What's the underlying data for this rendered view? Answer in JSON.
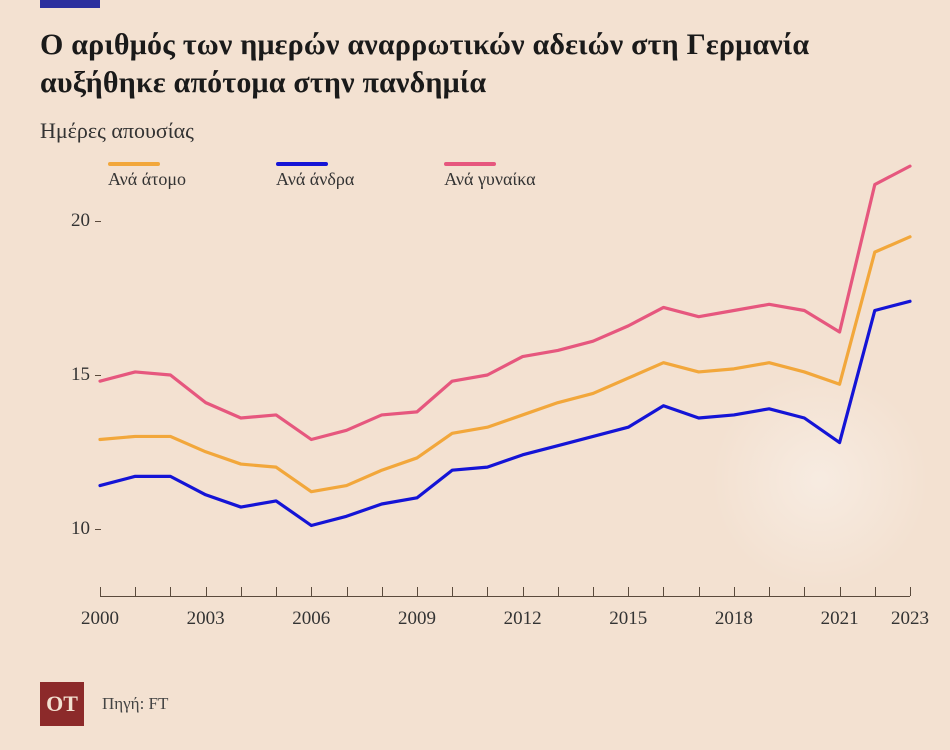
{
  "background_color": "#f3e1d1",
  "accent_bar_color": "#2b2f9e",
  "title": "Ο αριθμός των ημερών αναρρωτικών αδειών στη Γερμανία αυξήθηκε απότομα στην πανδημία",
  "title_fontsize": 30,
  "title_color": "#1a1a1a",
  "subtitle": "Ημέρες απουσίας",
  "subtitle_fontsize": 22,
  "subtitle_color": "#333333",
  "chart": {
    "type": "line",
    "x_years": [
      2000,
      2001,
      2002,
      2003,
      2004,
      2005,
      2006,
      2007,
      2008,
      2009,
      2010,
      2011,
      2012,
      2013,
      2014,
      2015,
      2016,
      2017,
      2018,
      2019,
      2020,
      2021,
      2022,
      2023
    ],
    "xlim": [
      2000,
      2023
    ],
    "x_tick_labels": [
      "2000",
      "2003",
      "2006",
      "2009",
      "2012",
      "2015",
      "2018",
      "2021",
      "2023"
    ],
    "x_tick_positions": [
      2000,
      2003,
      2006,
      2009,
      2012,
      2015,
      2018,
      2021,
      2023
    ],
    "x_minor_ticks": [
      2000,
      2001,
      2002,
      2003,
      2004,
      2005,
      2006,
      2007,
      2008,
      2009,
      2010,
      2011,
      2012,
      2013,
      2014,
      2015,
      2016,
      2017,
      2018,
      2019,
      2020,
      2021,
      2022,
      2023
    ],
    "ylim": [
      8,
      22
    ],
    "y_ticks": [
      10,
      15,
      20
    ],
    "axis_color": "#5a4a3c",
    "grid_color": "#5a4a3c",
    "axis_label_fontsize": 19,
    "axis_label_color": "#333333",
    "line_width": 3.2,
    "series": [
      {
        "key": "per_person",
        "label": "Ανά άτομο",
        "color": "#f2a73b",
        "values": [
          12.9,
          13.0,
          13.0,
          12.5,
          12.1,
          12.0,
          11.2,
          11.4,
          11.9,
          12.3,
          13.1,
          13.3,
          13.7,
          14.1,
          14.4,
          14.9,
          15.4,
          15.1,
          15.2,
          15.4,
          15.1,
          14.7,
          19.0,
          19.5
        ]
      },
      {
        "key": "per_man",
        "label": "Ανά άνδρα",
        "color": "#1414d6",
        "values": [
          11.4,
          11.7,
          11.7,
          11.1,
          10.7,
          10.9,
          10.1,
          10.4,
          10.8,
          11.0,
          11.9,
          12.0,
          12.4,
          12.7,
          13.0,
          13.3,
          14.0,
          13.6,
          13.7,
          13.9,
          13.6,
          12.8,
          17.1,
          17.4
        ]
      },
      {
        "key": "per_woman",
        "label": "Ανά γυναίκα",
        "color": "#e6577e",
        "values": [
          14.8,
          15.1,
          15.0,
          14.1,
          13.6,
          13.7,
          12.9,
          13.2,
          13.7,
          13.8,
          14.8,
          15.0,
          15.6,
          15.8,
          16.1,
          16.6,
          17.2,
          16.9,
          17.1,
          17.3,
          17.1,
          16.4,
          21.2,
          21.8
        ]
      }
    ]
  },
  "legend_fontsize": 18,
  "legend_label_color": "#333333",
  "footer": {
    "logo_text": "OT",
    "logo_bg": "#8c2a2a",
    "logo_fg": "#f3e1d1",
    "logo_fontsize": 22,
    "source": "Πηγή: FT",
    "source_fontsize": 17,
    "source_color": "#444444"
  }
}
